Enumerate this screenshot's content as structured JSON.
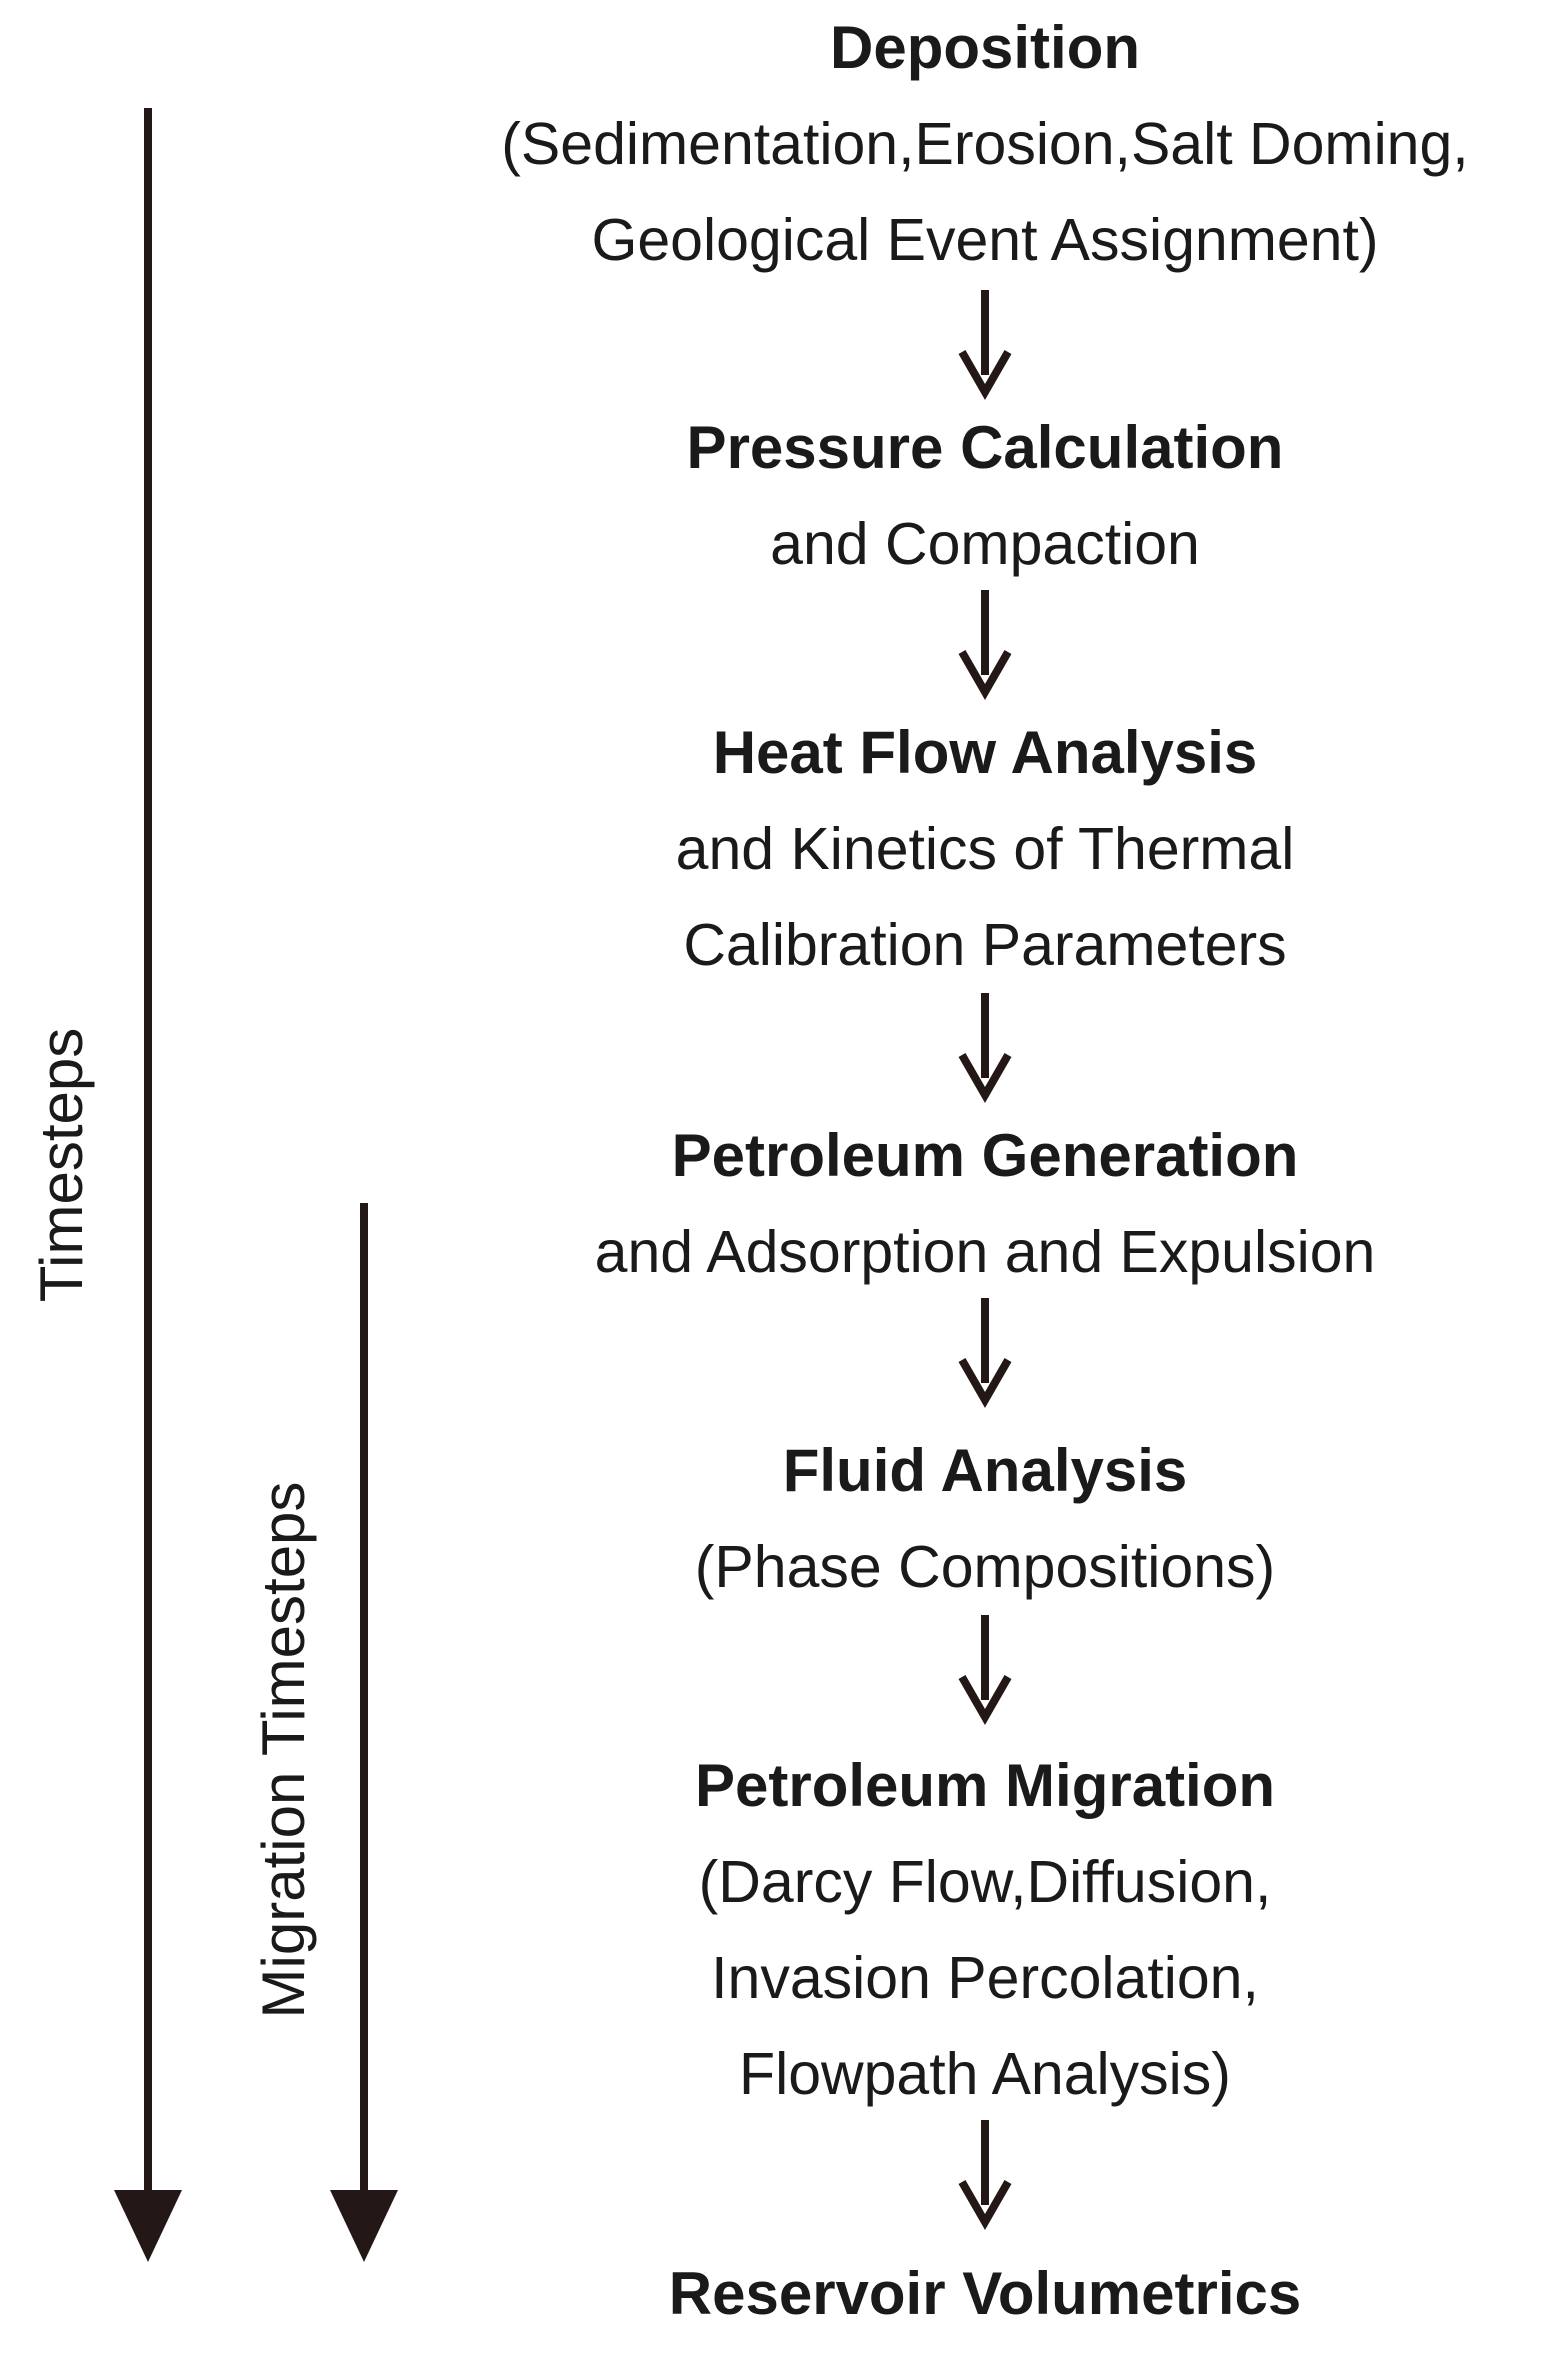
{
  "diagram": {
    "steps": [
      {
        "title": "Deposition",
        "detail": [
          "(Sedimentation,Erosion,Salt Doming,",
          "Geological Event Assignment)"
        ]
      },
      {
        "title": "Pressure Calculation",
        "detail": [
          "and Compaction"
        ]
      },
      {
        "title": "Heat Flow Analysis",
        "detail": [
          "and Kinetics of Thermal",
          "Calibration Parameters"
        ]
      },
      {
        "title": "Petroleum Generation",
        "detail": [
          "and Adsorption and Expulsion"
        ]
      },
      {
        "title": "Fluid Analysis",
        "detail": [
          "(Phase Compositions)"
        ]
      },
      {
        "title": "Petroleum Migration",
        "detail": [
          "(Darcy Flow,Diffusion,",
          "Invasion Percolation,",
          "Flowpath Analysis)"
        ]
      },
      {
        "title": "Reservoir Volumetrics",
        "detail": []
      }
    ],
    "side_labels": {
      "outer": "Timesteps",
      "inner": "Migration Timesteps"
    },
    "colors": {
      "arrow": "#231815",
      "text": "#1a1a1a"
    }
  }
}
